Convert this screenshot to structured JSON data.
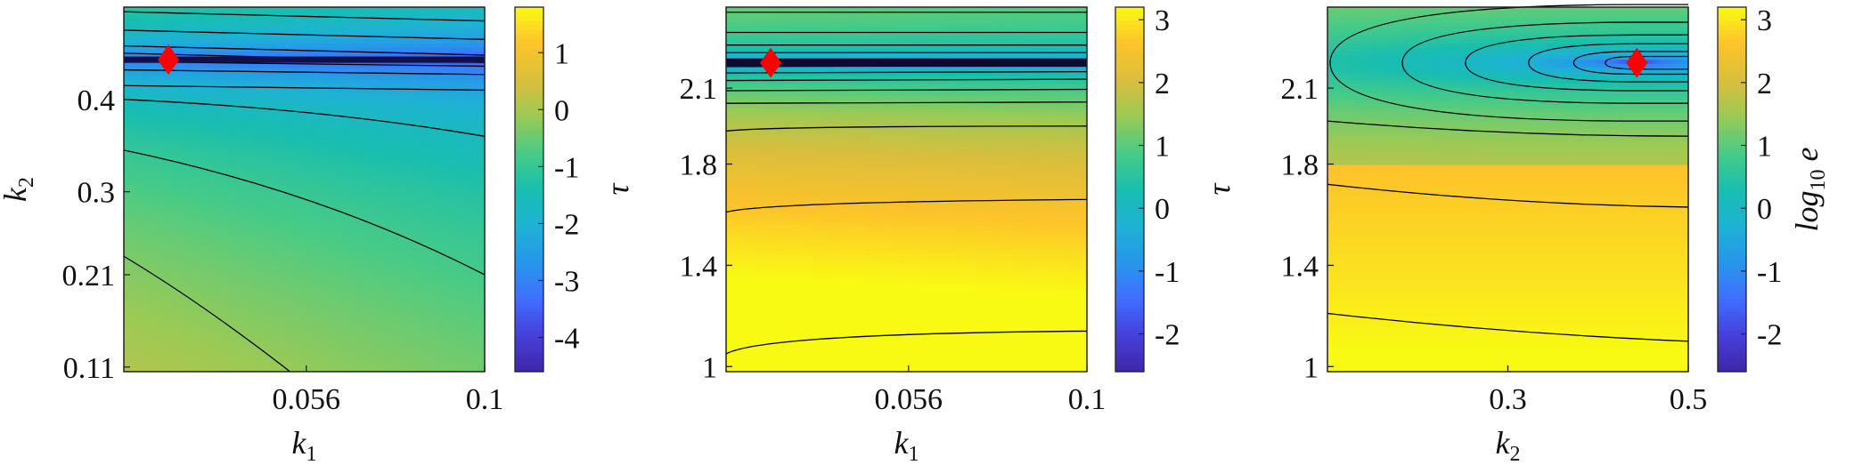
{
  "chart_data": [
    {
      "type": "heatmap",
      "subtype": "filled-contour",
      "xlabel": "k_1",
      "ylabel": "k_2",
      "x_ticks": [
        0.056,
        0.1
      ],
      "x_tick_labels": [
        "0.056",
        "0.1"
      ],
      "y_ticks": [
        0.11,
        0.21,
        0.3,
        0.4
      ],
      "y_tick_labels": [
        "0.11",
        "0.21",
        "0.3",
        "0.4"
      ],
      "xlim": [
        0.011,
        0.1
      ],
      "ylim": [
        0.105,
        0.5
      ],
      "colorbar": {
        "ticks": [
          -4,
          -3,
          -2,
          -1,
          0,
          1
        ],
        "tick_labels": [
          "-4",
          "-3",
          "-2",
          "-1",
          "0",
          "1"
        ],
        "range": [
          -4.6,
          1.8
        ]
      },
      "marker": {
        "x": 0.022,
        "y": 0.443,
        "color": "#ff0000",
        "shape": "diamond"
      },
      "minimum_line_y": 0.443
    },
    {
      "type": "heatmap",
      "subtype": "filled-contour",
      "xlabel": "k_1",
      "ylabel": "τ",
      "x_ticks": [
        0.056,
        0.1
      ],
      "x_tick_labels": [
        "0.056",
        "0.1"
      ],
      "y_ticks": [
        1,
        1.4,
        1.8,
        2.1
      ],
      "y_tick_labels": [
        "1",
        "1.4",
        "1.8",
        "2.1"
      ],
      "xlim": [
        0.011,
        0.1
      ],
      "ylim": [
        0.98,
        2.42
      ],
      "colorbar": {
        "ticks": [
          -2,
          -1,
          0,
          1,
          2,
          3
        ],
        "tick_labels": [
          "-2",
          "-1",
          "0",
          "1",
          "2",
          "3"
        ],
        "range": [
          -2.6,
          3.2
        ]
      },
      "marker": {
        "x": 0.022,
        "y": 2.2,
        "color": "#ff0000",
        "shape": "diamond"
      },
      "minimum_line_y": 2.2
    },
    {
      "type": "heatmap",
      "subtype": "filled-contour",
      "xlabel": "k_2",
      "ylabel": "τ",
      "x_ticks": [
        0.3,
        0.5
      ],
      "x_tick_labels": [
        "0.3",
        "0.5"
      ],
      "y_ticks": [
        1,
        1.4,
        1.8,
        2.1
      ],
      "y_tick_labels": [
        "1",
        "1.4",
        "1.8",
        "2.1"
      ],
      "xlim": [
        0.1,
        0.5
      ],
      "ylim": [
        0.98,
        2.42
      ],
      "colorbar": {
        "ticks": [
          -2,
          -1,
          0,
          1,
          2,
          3
        ],
        "tick_labels": [
          "-2",
          "-1",
          "0",
          "1",
          "2",
          "3"
        ],
        "range": [
          -2.6,
          3.2
        ],
        "label": "log10 e"
      },
      "marker": {
        "x": 0.443,
        "y": 2.2,
        "color": "#ff0000",
        "shape": "diamond"
      },
      "minimum_point": [
        0.443,
        2.2
      ]
    }
  ]
}
